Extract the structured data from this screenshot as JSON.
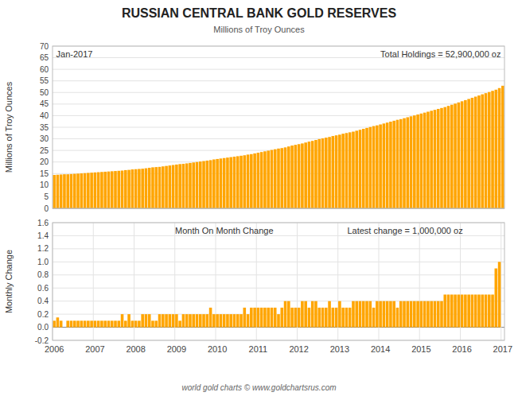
{
  "chart_data": [
    {
      "type": "bar",
      "title": "RUSSIAN CENTRAL BANK GOLD RESERVES",
      "subtitle": "Millions of Troy Ounces",
      "y_label": "Millions of Troy Ounces",
      "annotations": [
        "Jan-2017",
        "Total Holdings = 52,900,000 oz"
      ],
      "categories": [
        null,
        null,
        null,
        null,
        null,
        null,
        null,
        null,
        null,
        null,
        null,
        null,
        null,
        null,
        null,
        null,
        null,
        null,
        null,
        null,
        null,
        null,
        null,
        null,
        null,
        null,
        null,
        null,
        null,
        null,
        null,
        null,
        null,
        null,
        null,
        null,
        null,
        null,
        null,
        null,
        null,
        null,
        null,
        null,
        null,
        null,
        null,
        null,
        null,
        null,
        null,
        null,
        null,
        null,
        null,
        null,
        null,
        null,
        null,
        null,
        null,
        null,
        null,
        null,
        null,
        null,
        null,
        null,
        null,
        null,
        null,
        null,
        null,
        null,
        null,
        null,
        null,
        null,
        null,
        null,
        null,
        null,
        null,
        null,
        null,
        null,
        null,
        null,
        null,
        null,
        null,
        null,
        null,
        null,
        null,
        null,
        null,
        null,
        null,
        null,
        null,
        null,
        null,
        null,
        null,
        null,
        null,
        null,
        null,
        null,
        null,
        null,
        null,
        null,
        null,
        null,
        null,
        null,
        null,
        null,
        null,
        null,
        null,
        null,
        null,
        null,
        null,
        null,
        null,
        null,
        null,
        null,
        null
      ],
      "values": [
        14.4,
        14.5,
        14.6,
        14.7,
        14.7,
        14.8,
        14.9,
        15.0,
        15.1,
        15.2,
        15.3,
        15.4,
        15.5,
        15.6,
        15.7,
        15.8,
        15.9,
        16.0,
        16.1,
        16.2,
        16.3,
        16.5,
        16.6,
        16.8,
        16.9,
        17.0,
        17.1,
        17.3,
        17.5,
        17.7,
        17.8,
        17.9,
        18.1,
        18.3,
        18.5,
        18.7,
        18.9,
        19.1,
        19.2,
        19.4,
        19.6,
        19.8,
        20.0,
        20.2,
        20.4,
        20.6,
        20.8,
        21.1,
        21.3,
        21.5,
        21.7,
        21.9,
        22.1,
        22.3,
        22.5,
        22.7,
        22.9,
        23.2,
        23.4,
        23.7,
        24.0,
        24.3,
        24.6,
        24.9,
        25.2,
        25.5,
        25.8,
        26.0,
        26.3,
        26.7,
        27.1,
        27.4,
        27.7,
        28.0,
        28.4,
        28.8,
        29.1,
        29.5,
        29.9,
        30.2,
        30.5,
        30.8,
        31.2,
        31.5,
        31.8,
        32.2,
        32.5,
        32.8,
        33.1,
        33.5,
        33.9,
        34.3,
        34.7,
        35.1,
        35.5,
        35.8,
        36.2,
        36.6,
        37.0,
        37.4,
        37.8,
        38.2,
        38.5,
        38.9,
        39.3,
        39.7,
        40.1,
        40.5,
        40.9,
        41.3,
        41.7,
        42.1,
        42.5,
        42.9,
        43.3,
        43.7,
        44.2,
        44.7,
        45.2,
        45.7,
        46.2,
        46.7,
        47.2,
        47.7,
        48.2,
        48.7,
        49.2,
        49.7,
        50.2,
        50.7,
        51.2,
        51.9,
        52.9
      ],
      "color": "#FFA500",
      "ylim": [
        0,
        70
      ],
      "yticks": [
        0,
        5,
        10,
        15,
        20,
        25,
        30,
        35,
        40,
        45,
        50,
        55,
        60,
        65,
        70
      ],
      "grid": true,
      "tick_labels": "y"
    },
    {
      "type": "bar",
      "y_label": "Monthly Change",
      "annotations": [
        "Month On Month Change",
        "Latest change = 1,000,000 oz"
      ],
      "footer": "world gold charts © www.goldchartsrus.com",
      "categories": [
        "2006",
        null,
        null,
        null,
        null,
        null,
        null,
        null,
        null,
        null,
        null,
        null,
        "2007",
        null,
        null,
        null,
        null,
        null,
        null,
        null,
        null,
        null,
        null,
        null,
        "2008",
        null,
        null,
        null,
        null,
        null,
        null,
        null,
        null,
        null,
        null,
        null,
        "2009",
        null,
        null,
        null,
        null,
        null,
        null,
        null,
        null,
        null,
        null,
        null,
        "2010",
        null,
        null,
        null,
        null,
        null,
        null,
        null,
        null,
        null,
        null,
        null,
        "2011",
        null,
        null,
        null,
        null,
        null,
        null,
        null,
        null,
        null,
        null,
        null,
        "2012",
        null,
        null,
        null,
        null,
        null,
        null,
        null,
        null,
        null,
        null,
        null,
        "2013",
        null,
        null,
        null,
        null,
        null,
        null,
        null,
        null,
        null,
        null,
        null,
        "2014",
        null,
        null,
        null,
        null,
        null,
        null,
        null,
        null,
        null,
        null,
        null,
        "2015",
        null,
        null,
        null,
        null,
        null,
        null,
        null,
        null,
        null,
        null,
        null,
        "2016",
        null,
        null,
        null,
        null,
        null,
        null,
        null,
        null,
        null,
        null,
        null,
        "2017"
      ],
      "values": [
        0.1,
        0.15,
        0.1,
        0.0,
        0.1,
        0.1,
        0.1,
        0.1,
        0.1,
        0.1,
        0.1,
        0.1,
        0.1,
        0.1,
        0.1,
        0.1,
        0.1,
        0.1,
        0.1,
        0.1,
        0.2,
        0.1,
        0.2,
        0.1,
        0.1,
        0.1,
        0.2,
        0.2,
        0.2,
        0.1,
        0.1,
        0.2,
        0.2,
        0.2,
        0.2,
        0.2,
        0.2,
        0.1,
        0.2,
        0.2,
        0.2,
        0.2,
        0.2,
        0.2,
        0.2,
        0.2,
        0.3,
        0.2,
        0.2,
        0.2,
        0.2,
        0.2,
        0.2,
        0.2,
        0.2,
        0.2,
        0.3,
        0.2,
        0.3,
        0.3,
        0.3,
        0.3,
        0.3,
        0.3,
        0.3,
        0.3,
        0.2,
        0.3,
        0.4,
        0.4,
        0.3,
        0.3,
        0.3,
        0.4,
        0.4,
        0.3,
        0.4,
        0.4,
        0.3,
        0.3,
        0.3,
        0.4,
        0.3,
        0.3,
        0.4,
        0.3,
        0.3,
        0.3,
        0.4,
        0.4,
        0.4,
        0.4,
        0.4,
        0.4,
        0.3,
        0.4,
        0.4,
        0.4,
        0.4,
        0.4,
        0.4,
        0.3,
        0.4,
        0.4,
        0.4,
        0.4,
        0.4,
        0.4,
        0.4,
        0.4,
        0.4,
        0.4,
        0.4,
        0.4,
        0.4,
        0.5,
        0.5,
        0.5,
        0.5,
        0.5,
        0.5,
        0.5,
        0.5,
        0.5,
        0.5,
        0.5,
        0.5,
        0.5,
        0.5,
        0.5,
        0.9,
        1.0,
        null
      ],
      "color": "#FFA500",
      "ylim": [
        -0.2,
        1.6
      ],
      "yticks": [
        -0.2,
        {
          "value": 0.0,
          "label": "0.0"
        },
        0.2,
        0.4,
        0.6,
        0.8,
        {
          "value": 1.0,
          "label": "1.0"
        },
        1.2,
        1.4,
        1.6
      ],
      "grid": true
    }
  ]
}
